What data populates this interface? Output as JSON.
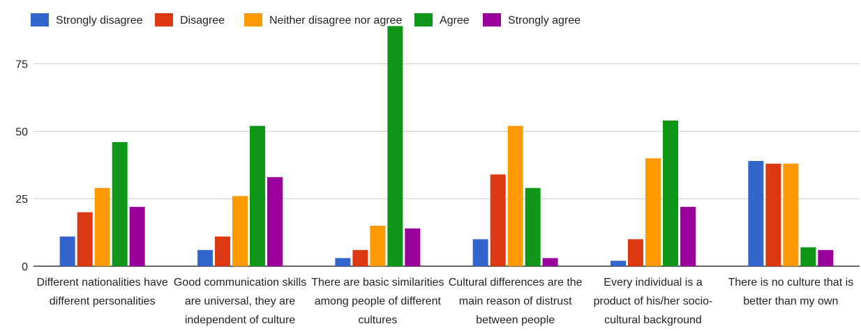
{
  "chart_data": {
    "type": "bar",
    "categories": [
      [
        "Different nationalities have",
        "different personalities"
      ],
      [
        "Good communication skills",
        "are universal, they are",
        "independent of culture"
      ],
      [
        "There are basic similarities",
        "among people of different",
        "cultures"
      ],
      [
        "Cultural differences are the",
        "main reason of distrust",
        "between people"
      ],
      [
        "Every individual is a",
        "product of his/her socio-",
        "cultural background"
      ],
      [
        "There is no culture that is",
        "better than my own"
      ]
    ],
    "series": [
      {
        "name": "Strongly disagree",
        "color": "#3366cc",
        "values": [
          11,
          6,
          3,
          10,
          2,
          39
        ]
      },
      {
        "name": "Disagree",
        "color": "#dc3912",
        "values": [
          20,
          11,
          6,
          34,
          10,
          38
        ]
      },
      {
        "name": "Neither disagree nor agree",
        "color": "#ff9900",
        "values": [
          29,
          26,
          15,
          52,
          40,
          38
        ]
      },
      {
        "name": "Agree",
        "color": "#109618",
        "values": [
          46,
          52,
          89,
          29,
          54,
          7
        ]
      },
      {
        "name": "Strongly agree",
        "color": "#990099",
        "values": [
          22,
          33,
          14,
          3,
          22,
          6
        ]
      }
    ],
    "yticks": [
      0,
      25,
      50,
      75
    ],
    "ylim": [
      0,
      90
    ],
    "grid": true,
    "legend": "top-left",
    "title": "",
    "xlabel": "",
    "ylabel": ""
  }
}
